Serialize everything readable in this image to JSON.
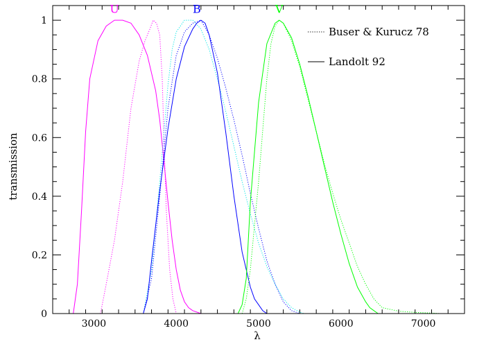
{
  "chart_data": {
    "type": "line",
    "xlabel": "λ",
    "ylabel": "transmission",
    "xlim": [
      2500,
      7500
    ],
    "ylim": [
      0,
      1.05
    ],
    "xticks": [
      3000,
      4000,
      5000,
      6000,
      7000
    ],
    "xtick_labels": [
      "3000",
      "4000",
      "5000",
      "6000",
      "7000"
    ],
    "yticks": [
      0,
      0.2,
      0.4,
      0.6,
      0.8,
      1
    ],
    "ytick_labels": [
      "0",
      "0.2",
      "0.4",
      "0.6",
      "0.8",
      "1"
    ],
    "grid": false,
    "legend_position": "top-right",
    "legend": [
      {
        "label": "Buser & Kurucz 78",
        "style": "dotted"
      },
      {
        "label": "Landolt 92",
        "style": "solid"
      }
    ],
    "annotations": [
      {
        "text": "U",
        "x": 3250,
        "y": 1.025,
        "color": "#ff00ff"
      },
      {
        "text": "B",
        "x": 4250,
        "y": 1.025,
        "color": "#0000ff"
      },
      {
        "text": "V",
        "x": 5250,
        "y": 1.025,
        "color": "#00ff00"
      }
    ],
    "series": [
      {
        "band": "U",
        "source": "Buser & Kurucz 78",
        "style": "dotted",
        "color": "#ff00ff",
        "x": [
          3080,
          3150,
          3250,
          3350,
          3450,
          3550,
          3620,
          3680,
          3720,
          3760,
          3800,
          3830,
          3850,
          3880,
          3920,
          3960,
          4000
        ],
        "y": [
          0,
          0.1,
          0.25,
          0.45,
          0.7,
          0.86,
          0.93,
          0.97,
          1.0,
          0.99,
          0.95,
          0.8,
          0.6,
          0.35,
          0.15,
          0.05,
          0
        ]
      },
      {
        "band": "U",
        "source": "Landolt 92",
        "style": "solid",
        "color": "#ff00ff",
        "x": [
          2750,
          2800,
          2850,
          2900,
          2950,
          3050,
          3150,
          3250,
          3350,
          3450,
          3550,
          3650,
          3750,
          3800,
          3850,
          3900,
          3950,
          4000,
          4050,
          4100,
          4150,
          4200,
          4300
        ],
        "y": [
          0,
          0.1,
          0.35,
          0.62,
          0.8,
          0.93,
          0.98,
          1.0,
          1.0,
          0.99,
          0.95,
          0.88,
          0.76,
          0.66,
          0.52,
          0.38,
          0.25,
          0.15,
          0.08,
          0.04,
          0.02,
          0.01,
          0
        ]
      },
      {
        "band": "B",
        "source": "Buser & Kurucz 78",
        "style": "dotted",
        "color": "#00e6e6",
        "x": [
          3600,
          3700,
          3800,
          3900,
          3950,
          4000,
          4100,
          4200,
          4300,
          4400,
          4500,
          4600,
          4700,
          4800,
          4900,
          5000,
          5100,
          5200,
          5300,
          5400,
          5500,
          5550
        ],
        "y": [
          0,
          0.15,
          0.45,
          0.78,
          0.9,
          0.96,
          1.0,
          1.0,
          0.97,
          0.9,
          0.8,
          0.69,
          0.57,
          0.45,
          0.34,
          0.24,
          0.16,
          0.1,
          0.05,
          0.02,
          0.005,
          0
        ]
      },
      {
        "band": "B",
        "source": "Buser & Kurucz 78",
        "style": "dotted",
        "color": "#0000ff",
        "x": [
          3600,
          3700,
          3800,
          3900,
          4000,
          4100,
          4200,
          4300,
          4400,
          4500,
          4600,
          4700,
          4800,
          4900,
          5000,
          5100,
          5200,
          5300,
          5400,
          5500
        ],
        "y": [
          0,
          0.12,
          0.4,
          0.7,
          0.88,
          0.96,
          0.99,
          1.0,
          0.95,
          0.87,
          0.77,
          0.66,
          0.54,
          0.41,
          0.29,
          0.18,
          0.1,
          0.04,
          0.01,
          0
        ]
      },
      {
        "band": "B",
        "source": "Landolt 92",
        "style": "solid",
        "color": "#0000ff",
        "x": [
          3600,
          3650,
          3700,
          3800,
          3900,
          4000,
          4100,
          4200,
          4250,
          4300,
          4350,
          4400,
          4500,
          4600,
          4700,
          4800,
          4900,
          4950,
          5000,
          5050,
          5100
        ],
        "y": [
          0,
          0.05,
          0.18,
          0.42,
          0.63,
          0.8,
          0.91,
          0.97,
          0.99,
          1.0,
          0.99,
          0.95,
          0.82,
          0.62,
          0.4,
          0.21,
          0.09,
          0.05,
          0.03,
          0.01,
          0
        ]
      },
      {
        "band": "V",
        "source": "Buser & Kurucz 78",
        "style": "dotted",
        "color": "#00ff00",
        "x": [
          4800,
          4850,
          4900,
          5000,
          5100,
          5150,
          5200,
          5250,
          5300,
          5400,
          5500,
          5600,
          5700,
          5800,
          5900,
          6000,
          6100,
          6200,
          6300,
          6400,
          6500,
          6700,
          6900,
          7100,
          7200
        ],
        "y": [
          0,
          0.05,
          0.15,
          0.45,
          0.8,
          0.92,
          0.98,
          1.0,
          0.99,
          0.93,
          0.84,
          0.73,
          0.62,
          0.51,
          0.41,
          0.32,
          0.24,
          0.16,
          0.1,
          0.05,
          0.02,
          0.008,
          0.004,
          0.002,
          0
        ]
      },
      {
        "band": "V",
        "source": "Landolt 92",
        "style": "solid",
        "color": "#00ff00",
        "x": [
          4750,
          4800,
          4850,
          4900,
          5000,
          5100,
          5200,
          5250,
          5300,
          5400,
          5500,
          5600,
          5700,
          5800,
          5900,
          6000,
          6100,
          6200,
          6300,
          6350,
          6400,
          6450
        ],
        "y": [
          0,
          0.03,
          0.12,
          0.38,
          0.72,
          0.92,
          0.99,
          1.0,
          0.99,
          0.94,
          0.85,
          0.74,
          0.62,
          0.5,
          0.38,
          0.27,
          0.17,
          0.09,
          0.04,
          0.02,
          0.01,
          0
        ]
      }
    ]
  }
}
